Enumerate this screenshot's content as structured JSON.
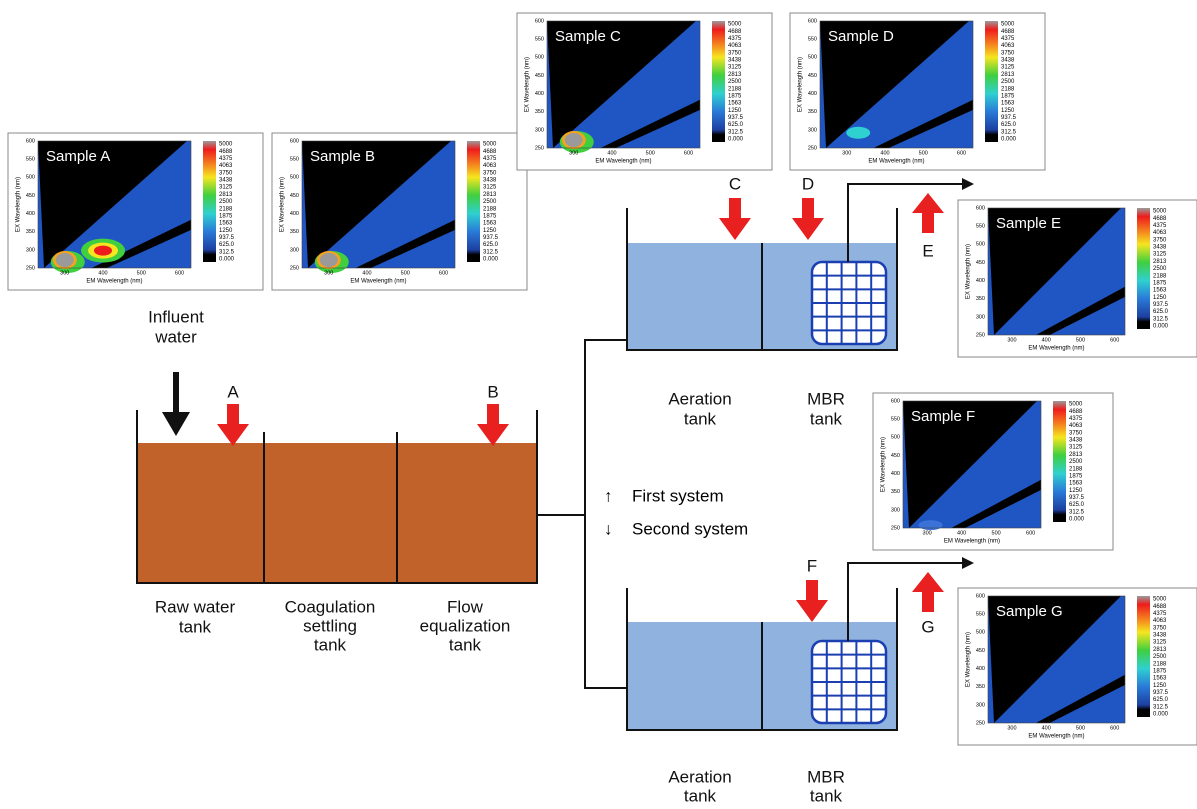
{
  "influent": [
    "Influent",
    "water"
  ],
  "points": [
    "A",
    "B",
    "C",
    "D",
    "E",
    "F",
    "G"
  ],
  "tanks": {
    "raw_water": [
      "Raw water",
      "tank"
    ],
    "coagulation": [
      "Coagulation",
      "settling",
      "tank"
    ],
    "flow_equalization": [
      "Flow",
      "equalization",
      "tank"
    ],
    "aeration_1": [
      "Aeration",
      "tank"
    ],
    "mbr_1": [
      "MBR",
      "tank"
    ],
    "aeration_2": [
      "Aeration",
      "tank"
    ],
    "mbr_2": [
      "MBR",
      "tank"
    ]
  },
  "legend": [
    {
      "symbol": "↑",
      "label": "First system"
    },
    {
      "symbol": "↓",
      "label": "Second system"
    }
  ],
  "eem": {
    "colorbar": [
      "5000",
      "4688",
      "4375",
      "4063",
      "3750",
      "3438",
      "3125",
      "2813",
      "2500",
      "2188",
      "1875",
      "1563",
      "1250",
      "937.5",
      "625.0",
      "312.5",
      "0.000"
    ],
    "ex_ticks": [
      600,
      550,
      500,
      450,
      400,
      350,
      300,
      250
    ],
    "em_ticks": [
      300,
      400,
      500,
      600
    ],
    "ex_title": "EX Wavelength (nm)",
    "em_title": "EM Wavelength (nm)"
  },
  "samples": [
    "Sample A",
    "Sample B",
    "Sample C",
    "Sample D",
    "Sample E",
    "Sample F",
    "Sample G"
  ]
}
